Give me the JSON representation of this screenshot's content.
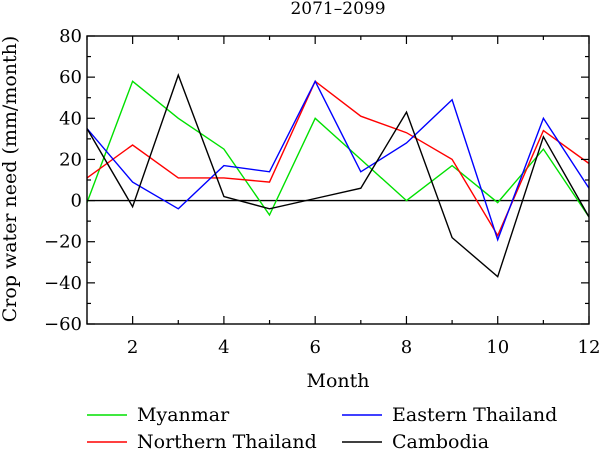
{
  "chart_data": {
    "type": "line",
    "title": "2071–2099",
    "xlabel": "Month",
    "ylabel": "Crop water need (mm/month)",
    "xlim": [
      1,
      12
    ],
    "ylim": [
      -60,
      80
    ],
    "xticks": [
      2,
      4,
      6,
      8,
      10,
      12
    ],
    "yticks": [
      -60,
      -40,
      -20,
      0,
      20,
      40,
      60,
      80
    ],
    "x": [
      1,
      2,
      3,
      4,
      5,
      6,
      7,
      8,
      9,
      10,
      11,
      12
    ],
    "zero_line": true,
    "legend_position": "bottom",
    "series": [
      {
        "name": "Myanmar",
        "color": "#00e000",
        "values": [
          -1,
          58,
          40,
          25,
          -7,
          40,
          20,
          0,
          17,
          -1,
          25,
          -8
        ]
      },
      {
        "name": "Northern Thailand",
        "color": "#ff0000",
        "values": [
          11,
          27,
          11,
          11,
          9,
          58,
          41,
          33,
          20,
          -17,
          34,
          18
        ]
      },
      {
        "name": "Eastern Thailand",
        "color": "#0000ff",
        "values": [
          35,
          9,
          -4,
          17,
          14,
          58,
          14,
          28,
          49,
          -19,
          40,
          6
        ]
      },
      {
        "name": "Cambodia",
        "color": "#000000",
        "values": [
          35,
          -3,
          61,
          2,
          -4,
          1,
          6,
          43,
          -18,
          -37,
          31,
          -8
        ]
      }
    ]
  }
}
